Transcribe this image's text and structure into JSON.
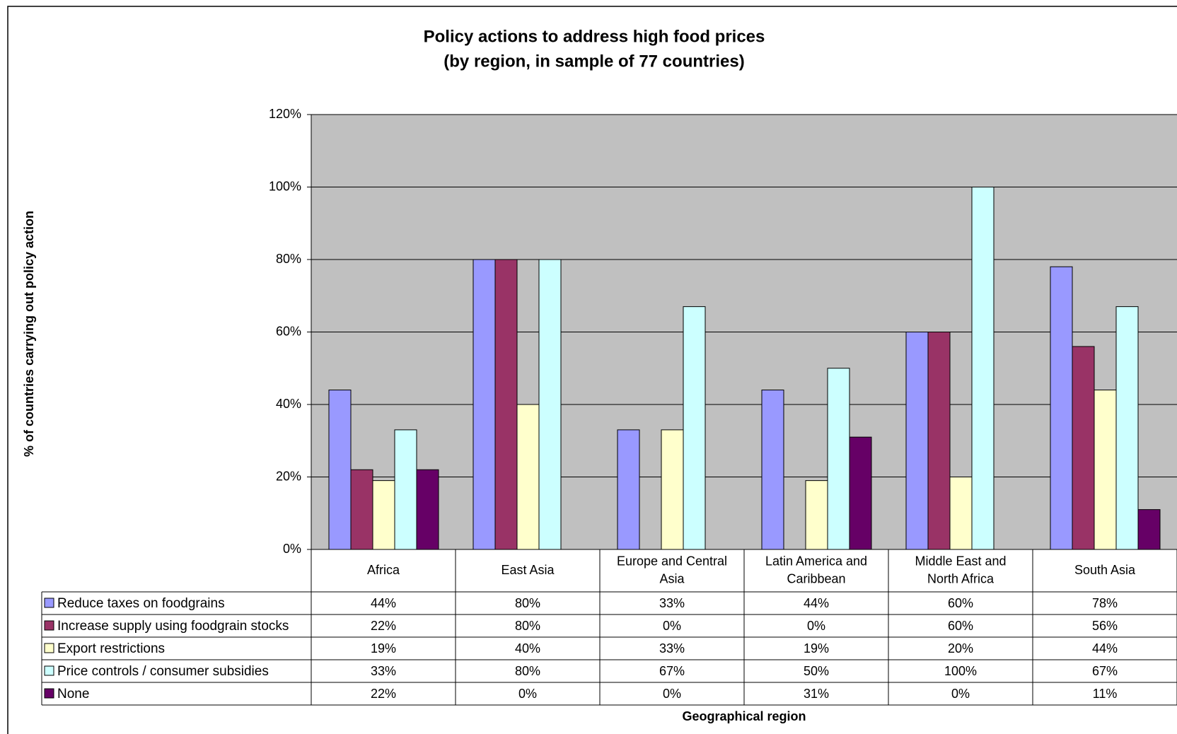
{
  "chart_data": {
    "type": "bar",
    "title": "Policy actions to address high food prices",
    "subtitle": "(by region, in sample of 77 countries)",
    "xlabel": "Geographical region",
    "ylabel": "% of countries carrying out policy action",
    "ylim": [
      0,
      120
    ],
    "yticks": [
      "0%",
      "20%",
      "40%",
      "60%",
      "80%",
      "100%",
      "120%"
    ],
    "grid": true,
    "legend": "data-table-left",
    "plot_background": "#C0C0C0",
    "categories": [
      [
        "Africa"
      ],
      [
        "East Asia"
      ],
      [
        "Europe and Central",
        "Asia"
      ],
      [
        "Latin America and",
        "Caribbean"
      ],
      [
        "Middle East and",
        "North Africa"
      ],
      [
        "South Asia"
      ]
    ],
    "series": [
      {
        "name": "Reduce taxes on foodgrains",
        "color": "#9999FF",
        "values": [
          44,
          80,
          33,
          44,
          60,
          78
        ],
        "labels": [
          "44%",
          "80%",
          "33%",
          "44%",
          "60%",
          "78%"
        ]
      },
      {
        "name": "Increase supply using foodgrain stocks",
        "color": "#993366",
        "values": [
          22,
          80,
          0,
          0,
          60,
          56
        ],
        "labels": [
          "22%",
          "80%",
          "0%",
          "0%",
          "60%",
          "56%"
        ]
      },
      {
        "name": "Export restrictions",
        "color": "#FFFFCC",
        "values": [
          19,
          40,
          33,
          19,
          20,
          44
        ],
        "labels": [
          "19%",
          "40%",
          "33%",
          "19%",
          "20%",
          "44%"
        ]
      },
      {
        "name": "Price controls / consumer subsidies",
        "color": "#CCFFFF",
        "values": [
          33,
          80,
          67,
          50,
          100,
          67
        ],
        "labels": [
          "33%",
          "80%",
          "67%",
          "50%",
          "100%",
          "67%"
        ]
      },
      {
        "name": "None",
        "color": "#660066",
        "values": [
          22,
          0,
          0,
          31,
          0,
          11
        ],
        "labels": [
          "22%",
          "0%",
          "0%",
          "31%",
          "0%",
          "11%"
        ]
      }
    ]
  }
}
